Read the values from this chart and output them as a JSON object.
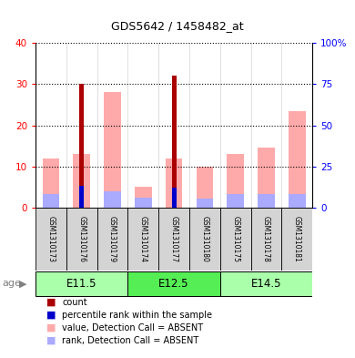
{
  "title": "GDS5642 / 1458482_at",
  "samples": [
    "GSM1310173",
    "GSM1310176",
    "GSM1310179",
    "GSM1310174",
    "GSM1310177",
    "GSM1310180",
    "GSM1310175",
    "GSM1310178",
    "GSM1310181"
  ],
  "age_groups": [
    {
      "label": "E11.5",
      "start": 0,
      "end": 3
    },
    {
      "label": "E12.5",
      "start": 3,
      "end": 6
    },
    {
      "label": "E14.5",
      "start": 6,
      "end": 9
    }
  ],
  "count_values": [
    0,
    30,
    0,
    0,
    32,
    0,
    0,
    0,
    0
  ],
  "percentile_values": [
    0,
    13,
    0,
    0,
    12,
    0,
    0,
    0,
    0
  ],
  "value_absent": [
    12,
    13,
    28,
    5,
    12,
    10,
    13,
    14.5,
    23.5
  ],
  "rank_absent": [
    8.5,
    0,
    9.8,
    6,
    0,
    5.5,
    8.5,
    8.5,
    8
  ],
  "ylim_left": [
    0,
    40
  ],
  "ylim_right": [
    0,
    100
  ],
  "yticks_left": [
    0,
    10,
    20,
    30,
    40
  ],
  "yticks_right": [
    0,
    25,
    50,
    75,
    100
  ],
  "count_color": "#aa0000",
  "percentile_color": "#0000cc",
  "value_absent_color": "#ffaaaa",
  "rank_absent_color": "#aaaaff",
  "label_bg_color": "#cccccc",
  "age_color_light": "#aaffaa",
  "age_color_dark": "#55ee55"
}
